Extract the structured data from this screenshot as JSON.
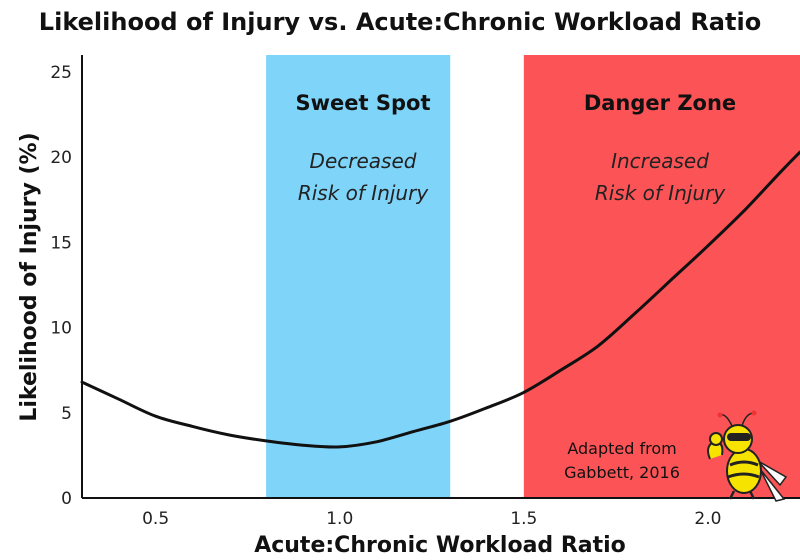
{
  "chart_data": {
    "type": "line",
    "title": "Likelihood of Injury vs. Acute:Chronic Workload Ratio",
    "xlabel": "Acute:Chronic Workload Ratio",
    "ylabel": "Likelihood of Injury (%)",
    "xlim": [
      0.3,
      2.25
    ],
    "ylim": [
      0,
      26
    ],
    "xticks": [
      "0.5",
      "1.0",
      "1.5",
      "2.0"
    ],
    "xtick_values": [
      0.5,
      1.0,
      1.5,
      2.0
    ],
    "yticks": [
      "0",
      "5",
      "10",
      "15",
      "20",
      "25"
    ],
    "ytick_values": [
      0,
      5,
      10,
      15,
      20,
      25
    ],
    "grid": false,
    "series": [
      {
        "color": "#111111",
        "x": [
          0.3,
          0.4,
          0.5,
          0.6,
          0.7,
          0.8,
          0.9,
          1.0,
          1.1,
          1.2,
          1.3,
          1.4,
          1.5,
          1.6,
          1.7,
          1.8,
          1.9,
          2.0,
          2.1,
          2.2,
          2.25
        ],
        "y": [
          6.8,
          5.8,
          4.8,
          4.2,
          3.7,
          3.35,
          3.1,
          3.0,
          3.3,
          3.9,
          4.5,
          5.3,
          6.2,
          7.5,
          8.9,
          10.8,
          12.8,
          14.8,
          16.9,
          19.2,
          20.3
        ]
      }
    ],
    "zones": [
      {
        "x_start": 0.8,
        "x_end": 1.3,
        "color": "#7fd4f9",
        "title": "Sweet Spot",
        "subtitle_lines": [
          "Decreased",
          "Risk of Injury"
        ]
      },
      {
        "x_start": 1.5,
        "x_end": 2.25,
        "color": "#fc5456",
        "title": "Danger Zone",
        "subtitle_lines": [
          "Increased",
          "Risk of Injury"
        ]
      }
    ],
    "annotation_lines": [
      "Adapted from",
      "Gabbett, 2016"
    ],
    "mascot_icon": "hornet-mascot-icon"
  }
}
